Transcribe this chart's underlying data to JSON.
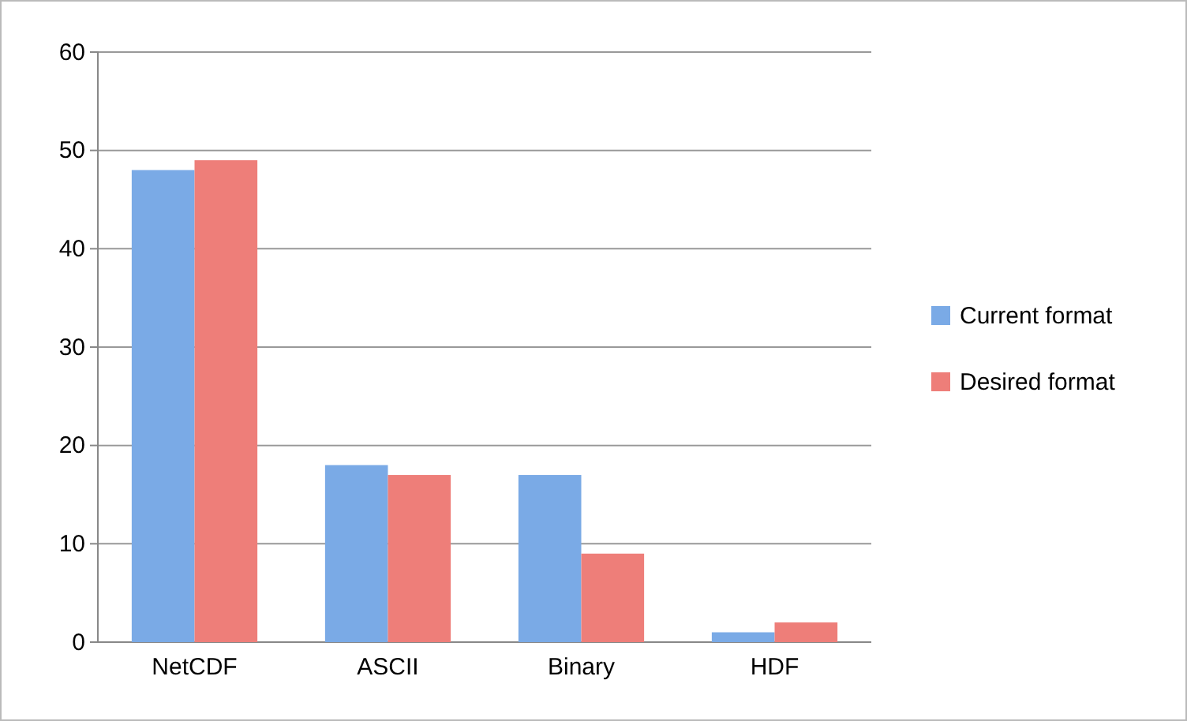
{
  "chart_data": {
    "type": "bar",
    "categories": [
      "NetCDF",
      "ASCII",
      "Binary",
      "HDF"
    ],
    "series": [
      {
        "name": "Current format",
        "color": "#7aaae6",
        "values": [
          48,
          18,
          17,
          1
        ]
      },
      {
        "name": "Desired format",
        "color": "#ee7e79",
        "values": [
          49,
          17,
          9,
          2
        ]
      }
    ],
    "ylim": [
      0,
      60
    ],
    "yticks": [
      0,
      10,
      20,
      30,
      40,
      50,
      60
    ],
    "grid": "y",
    "legend": "right"
  }
}
